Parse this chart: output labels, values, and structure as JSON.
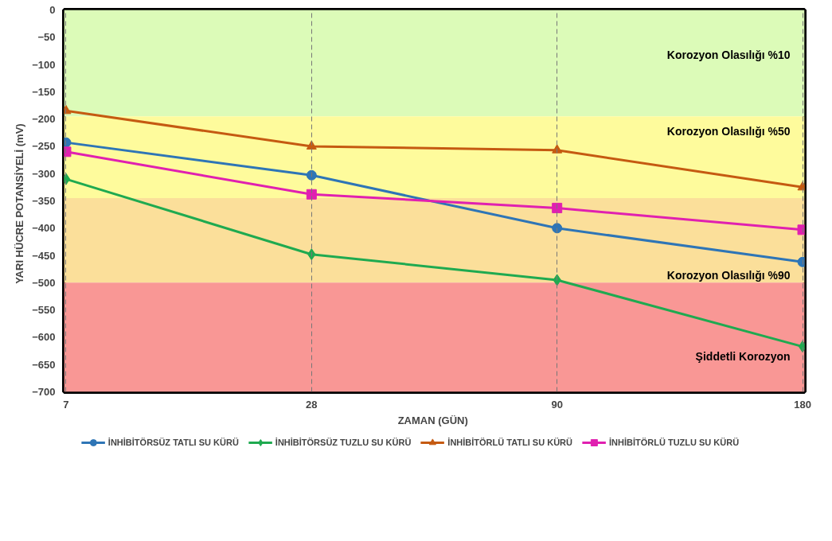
{
  "chart_data": {
    "type": "line",
    "xlabel": "ZAMAN  (GÜN)",
    "ylabel": "YARI HÜCRE POTANSİYELİ   (mV)",
    "categories": [
      "7",
      "28",
      "90",
      "180"
    ],
    "series": [
      {
        "name": "İNHİBİTÖRSÜZ TATLI SU KÜRÜ",
        "color": "#2e75b6",
        "marker": "circle",
        "values": [
          -243,
          -303,
          -400,
          -462
        ]
      },
      {
        "name": "İNHİBİTÖRSÜZ TUZLU SU KÜRÜ",
        "color": "#1faa50",
        "marker": "diamond",
        "values": [
          -310,
          -448,
          -495,
          -617
        ]
      },
      {
        "name": "İNHİBİTÖRLÜ TATLI SU KÜRÜ",
        "color": "#c55a11",
        "marker": "triangle",
        "values": [
          -185,
          -250,
          -257,
          -325
        ]
      },
      {
        "name": "İNHİBİTÖRLÜ TUZLU SU KÜRÜ",
        "color": "#e020b0",
        "marker": "square",
        "values": [
          -260,
          -338,
          -363,
          -403
        ]
      }
    ],
    "ylim": [
      -700,
      0
    ],
    "yticks": [
      0,
      -50,
      -100,
      -150,
      -200,
      -250,
      -300,
      -350,
      -400,
      -450,
      -500,
      -550,
      -600,
      -650,
      -700
    ],
    "bands": [
      {
        "axis": "y",
        "from": -195,
        "to": 0,
        "label": "Korozyon Olasılığı %10",
        "color": "#dcfbb8"
      },
      {
        "axis": "y",
        "from": -345,
        "to": -195,
        "label": "Korozyon Olasılığı %50",
        "color": "#fefb9c"
      },
      {
        "axis": "y",
        "from": -500,
        "to": -345,
        "label": "Korozyon Olasılığı %90",
        "color": "#fbdf9a"
      },
      {
        "axis": "y",
        "from": -700,
        "to": -500,
        "label": "Şiddetli Korozyon",
        "color": "#f99795"
      }
    ],
    "grid": "x",
    "legend": "bottom",
    "line_style": "solid"
  }
}
